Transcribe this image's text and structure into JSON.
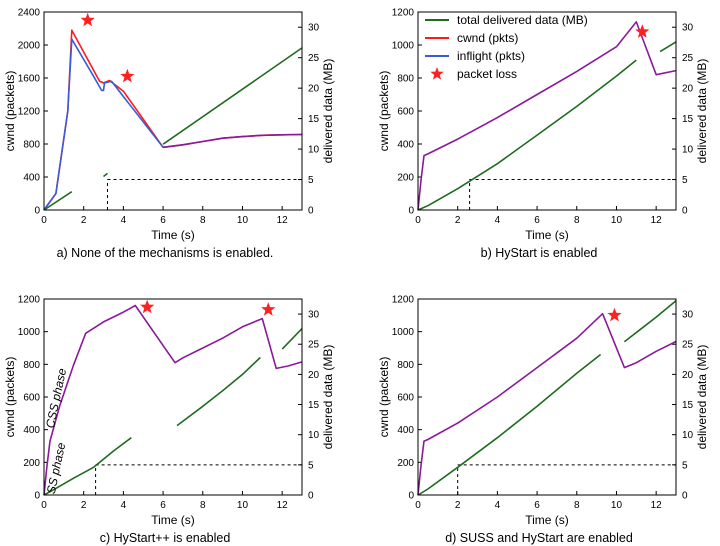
{
  "colors": {
    "delivered": "#1f6b1f",
    "cwnd": "#ff1a1a",
    "inflight": "#3a5bd9",
    "overlap": "#8a1a9a",
    "loss_marker": "#ff2020"
  },
  "legend": {
    "placement": "top-right of panel b",
    "items": [
      {
        "label": "total delivered data (MB)",
        "color": "#1f6b1f",
        "kind": "line"
      },
      {
        "label": "cwnd (pkts)",
        "color": "#ff1a1a",
        "kind": "line"
      },
      {
        "label": "inflight (pkts)",
        "color": "#3a5bd9",
        "kind": "line"
      },
      {
        "label": "packet loss",
        "color": "#ff2020",
        "kind": "star"
      }
    ]
  },
  "chart_data": [
    {
      "id": "a",
      "type": "line",
      "caption": "a) None of the mechanisms is enabled.",
      "xlabel": "Time (s)",
      "ylabel": "cwnd (packets)",
      "y2label": "delivered data (MB)",
      "xlim": [
        0,
        13
      ],
      "ylim": [
        0,
        2400
      ],
      "y2lim": [
        0,
        32.5
      ],
      "xticks": [
        "0",
        "2",
        "4",
        "6",
        "8",
        "10",
        "12"
      ],
      "yticks": [
        "0",
        "400",
        "800",
        "1200",
        "1600",
        "2000",
        "2400"
      ],
      "y2ticks": [
        "0",
        "5",
        "10",
        "15",
        "20",
        "25",
        "30"
      ],
      "series": [
        {
          "name": "cwnd (pkts)",
          "axis": "left",
          "color": "#ff1a1a",
          "segments": [
            [
              [
                0,
                0
              ],
              [
                0.6,
                200
              ],
              [
                1.2,
                1200
              ],
              [
                1.4,
                2180
              ],
              [
                2.8,
                1560
              ],
              [
                3.0,
                1540
              ],
              [
                3.3,
                1570
              ],
              [
                4.0,
                1440
              ],
              [
                6.0,
                760
              ],
              [
                7,
                790
              ],
              [
                8,
                830
              ],
              [
                9,
                870
              ],
              [
                10,
                890
              ],
              [
                11,
                905
              ],
              [
                12,
                912
              ],
              [
                13,
                915
              ]
            ]
          ]
        },
        {
          "name": "inflight (pkts)",
          "axis": "left",
          "color": "#3a5bd9",
          "segments": [
            [
              [
                0,
                0
              ],
              [
                0.6,
                200
              ],
              [
                1.2,
                1200
              ],
              [
                1.4,
                2070
              ],
              [
                2.5,
                1620
              ],
              [
                2.9,
                1450
              ],
              [
                3.0,
                1450
              ],
              [
                3.05,
                1540
              ],
              [
                3.4,
                1560
              ],
              [
                3.6,
                1500
              ],
              [
                6.0,
                760
              ]
            ]
          ]
        },
        {
          "name": "total delivered data (MB)",
          "axis": "right",
          "color": "#1f6b1f",
          "segments": [
            [
              [
                0,
                0
              ],
              [
                1.4,
                3.0
              ]
            ],
            [
              [
                3.0,
                5.5
              ],
              [
                3.2,
                6.0
              ]
            ],
            [
              [
                6.0,
                10.8
              ],
              [
                13,
                26.6
              ]
            ]
          ]
        },
        {
          "name": "overlap",
          "axis": "left",
          "color": "#8a1a9a",
          "segments": [
            [
              [
                6.0,
                760
              ],
              [
                7,
                790
              ],
              [
                8,
                830
              ],
              [
                9,
                870
              ],
              [
                10,
                890
              ],
              [
                11,
                905
              ],
              [
                12,
                912
              ],
              [
                13,
                915
              ]
            ]
          ]
        }
      ],
      "loss_points": [
        [
          2.2,
          2300
        ],
        [
          4.2,
          1620
        ]
      ],
      "guide": {
        "x": 3.2,
        "y2": 5
      }
    },
    {
      "id": "b",
      "type": "line",
      "caption": "b) HyStart is enabled",
      "xlabel": "Time (s)",
      "ylabel": "cwnd (packets)",
      "y2label": "delivered data (MB)",
      "xlim": [
        0,
        13
      ],
      "ylim": [
        0,
        1200
      ],
      "y2lim": [
        0,
        32.5
      ],
      "xticks": [
        "0",
        "2",
        "4",
        "6",
        "8",
        "10",
        "12"
      ],
      "yticks": [
        "0",
        "200",
        "400",
        "600",
        "800",
        "1000",
        "1200"
      ],
      "y2ticks": [
        "0",
        "5",
        "10",
        "15",
        "20",
        "25",
        "30"
      ],
      "series": [
        {
          "name": "cwnd (pkts)",
          "axis": "left",
          "color": "#8a1a9a",
          "segments": [
            [
              [
                0,
                0
              ],
              [
                0.15,
                180
              ],
              [
                0.3,
                330
              ],
              [
                0.5,
                340
              ],
              [
                2,
                430
              ],
              [
                4,
                560
              ],
              [
                6,
                700
              ],
              [
                8,
                840
              ],
              [
                10,
                990
              ],
              [
                11,
                1140
              ],
              [
                12,
                820
              ],
              [
                13,
                845
              ]
            ]
          ]
        },
        {
          "name": "total delivered data (MB)",
          "axis": "right",
          "color": "#1f6b1f",
          "segments": [
            [
              [
                0,
                0
              ],
              [
                0.5,
                0.7
              ],
              [
                2,
                3.5
              ],
              [
                4,
                7.6
              ],
              [
                6,
                12.3
              ],
              [
                8,
                17
              ],
              [
                10,
                22
              ],
              [
                11,
                24.6
              ]
            ],
            [
              [
                12.2,
                26
              ],
              [
                13,
                27.6
              ]
            ]
          ]
        }
      ],
      "loss_points": [
        [
          11.3,
          1080
        ]
      ],
      "guide": {
        "x": 2.6,
        "y2": 5
      }
    },
    {
      "id": "c",
      "type": "line",
      "caption": "c) HyStart++ is enabled",
      "xlabel": "Time (s)",
      "ylabel": "cwnd (packets)",
      "y2label": "delivered data (MB)",
      "xlim": [
        0,
        13
      ],
      "ylim": [
        0,
        1200
      ],
      "y2lim": [
        0,
        32.5
      ],
      "xticks": [
        "0",
        "2",
        "4",
        "6",
        "8",
        "10",
        "12"
      ],
      "yticks": [
        "0",
        "200",
        "400",
        "600",
        "800",
        "1000",
        "1200"
      ],
      "y2ticks": [
        "0",
        "5",
        "10",
        "15",
        "20",
        "25",
        "30"
      ],
      "series": [
        {
          "name": "cwnd (pkts)",
          "axis": "left",
          "color": "#8a1a9a",
          "segments": [
            [
              [
                0,
                0
              ],
              [
                0.15,
                180
              ],
              [
                0.3,
                330
              ],
              [
                0.8,
                550
              ],
              [
                1.5,
                800
              ],
              [
                2.1,
                990
              ],
              [
                3,
                1060
              ],
              [
                4,
                1120
              ],
              [
                4.6,
                1160
              ],
              [
                6.6,
                810
              ],
              [
                7,
                840
              ],
              [
                8,
                900
              ],
              [
                9,
                960
              ],
              [
                10,
                1030
              ],
              [
                11,
                1080
              ],
              [
                11.7,
                775
              ],
              [
                12.3,
                790
              ],
              [
                13,
                815
              ]
            ]
          ]
        },
        {
          "name": "total delivered data (MB)",
          "axis": "right",
          "color": "#1f6b1f",
          "segments": [
            [
              [
                0,
                0
              ],
              [
                0.5,
                0.9
              ],
              [
                1.5,
                2.8
              ],
              [
                2.5,
                4.6
              ],
              [
                3.5,
                7.3
              ],
              [
                4.4,
                9.5
              ]
            ],
            [
              [
                6.7,
                11.5
              ],
              [
                8,
                14.7
              ],
              [
                9,
                17.3
              ],
              [
                10,
                20
              ],
              [
                10.9,
                22.8
              ]
            ],
            [
              [
                12.0,
                24.2
              ],
              [
                13,
                27.6
              ]
            ]
          ]
        }
      ],
      "loss_points": [
        [
          5.2,
          1150
        ],
        [
          11.3,
          1135
        ]
      ],
      "guide": {
        "x": 2.6,
        "y2": 5
      },
      "annotations": [
        "CSS phase",
        "SS phase"
      ]
    },
    {
      "id": "d",
      "type": "line",
      "caption": "d) SUSS and HyStart are enabled",
      "xlabel": "Time (s)",
      "ylabel": "cwnd (packets)",
      "y2label": "delivered data (MB)",
      "xlim": [
        0,
        13
      ],
      "ylim": [
        0,
        1200
      ],
      "y2lim": [
        0,
        32.5
      ],
      "xticks": [
        "0",
        "2",
        "4",
        "6",
        "8",
        "10",
        "12"
      ],
      "yticks": [
        "0",
        "200",
        "400",
        "600",
        "800",
        "1000",
        "1200"
      ],
      "y2ticks": [
        "0",
        "5",
        "10",
        "15",
        "20",
        "25",
        "30"
      ],
      "series": [
        {
          "name": "cwnd (pkts)",
          "axis": "left",
          "color": "#8a1a9a",
          "segments": [
            [
              [
                0,
                0
              ],
              [
                0.15,
                180
              ],
              [
                0.3,
                330
              ],
              [
                0.5,
                340
              ],
              [
                2,
                440
              ],
              [
                4,
                600
              ],
              [
                6,
                780
              ],
              [
                8,
                960
              ],
              [
                9.3,
                1110
              ],
              [
                10.4,
                780
              ],
              [
                11,
                810
              ],
              [
                12,
                880
              ],
              [
                13,
                940
              ]
            ]
          ]
        },
        {
          "name": "total delivered data (MB)",
          "axis": "right",
          "color": "#1f6b1f",
          "segments": [
            [
              [
                0,
                0
              ],
              [
                0.5,
                1
              ],
              [
                2,
                4.6
              ],
              [
                4,
                9.5
              ],
              [
                6,
                14.7
              ],
              [
                8,
                20.2
              ],
              [
                9.2,
                23.3
              ]
            ],
            [
              [
                10.4,
                25.4
              ],
              [
                12,
                29.5
              ],
              [
                13,
                32.2
              ]
            ]
          ]
        }
      ],
      "loss_points": [
        [
          9.9,
          1100
        ]
      ],
      "guide": {
        "x": 2.0,
        "y2": 5
      }
    }
  ]
}
